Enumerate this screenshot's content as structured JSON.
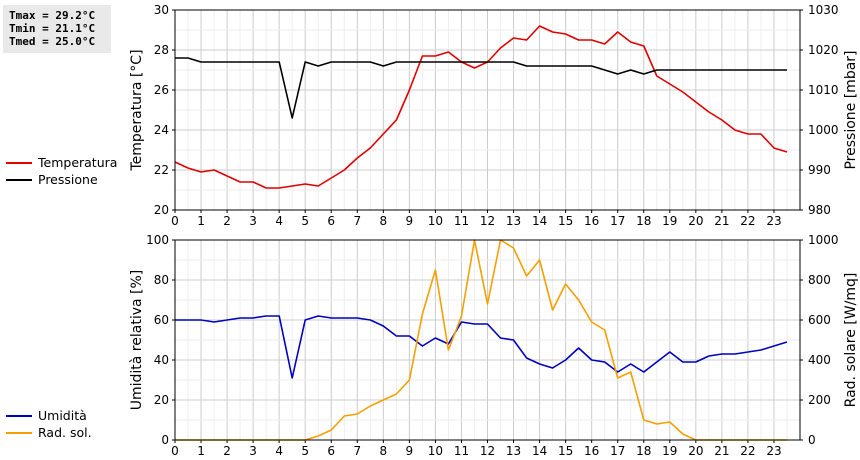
{
  "stats": {
    "tmax": "Tmax = 29.2°C",
    "tmin": "Tmin = 21.1°C",
    "tmed": "Tmed = 25.0°C"
  },
  "legend_top": [
    {
      "label": "Temperatura",
      "color": "#e00000"
    },
    {
      "label": "Pressione",
      "color": "#000000"
    }
  ],
  "legend_bottom": [
    {
      "label": "Umidità",
      "color": "#0000c0"
    },
    {
      "label": "Rad. sol.",
      "color": "#f5a000"
    }
  ],
  "chart_data": [
    {
      "type": "line",
      "x_ticks": [
        "0",
        "1",
        "2",
        "3",
        "4",
        "5",
        "6",
        "7",
        "8",
        "9",
        "10",
        "11",
        "12",
        "13",
        "14",
        "15",
        "16",
        "17",
        "18",
        "19",
        "20",
        "21",
        "22",
        "23"
      ],
      "xlim": [
        0,
        24
      ],
      "ylabel": "Temperatura [°C]",
      "ylim": [
        20,
        30
      ],
      "y_ticks": [
        "20",
        "22",
        "24",
        "26",
        "28",
        "30"
      ],
      "y2label": "Pressione [mbar]",
      "y2lim": [
        980,
        1030
      ],
      "y2_ticks": [
        "980",
        "990",
        "1000",
        "1010",
        "1020",
        "1030"
      ],
      "grid": true,
      "series": [
        {
          "name": "Temperatura",
          "axis": "left",
          "color": "#e00000",
          "x": [
            0,
            0.5,
            1,
            1.5,
            2,
            2.5,
            3,
            3.5,
            4,
            4.5,
            5,
            5.5,
            6,
            6.5,
            7,
            7.5,
            8,
            8.5,
            9,
            9.5,
            10,
            10.5,
            11,
            11.5,
            12,
            12.5,
            13,
            13.5,
            14,
            14.5,
            15,
            15.5,
            16,
            16.5,
            17,
            17.5,
            18,
            18.5,
            19,
            19.5,
            20,
            20.5,
            21,
            21.5,
            22,
            22.5,
            23,
            23.5
          ],
          "y": [
            22.4,
            22.1,
            21.9,
            22.0,
            21.7,
            21.4,
            21.4,
            21.1,
            21.1,
            21.2,
            21.3,
            21.2,
            21.6,
            22.0,
            22.6,
            23.1,
            23.8,
            24.5,
            26.0,
            27.7,
            27.7,
            27.9,
            27.4,
            27.1,
            27.4,
            28.1,
            28.6,
            28.5,
            29.2,
            28.9,
            28.8,
            28.5,
            28.5,
            28.3,
            28.9,
            28.4,
            28.2,
            26.7,
            26.3,
            25.9,
            25.4,
            24.9,
            24.5,
            24.0,
            23.8,
            23.8,
            23.1,
            22.9
          ]
        },
        {
          "name": "Pressione",
          "axis": "right",
          "color": "#000000",
          "x": [
            0,
            0.5,
            1,
            1.5,
            2,
            2.5,
            3,
            3.5,
            4,
            4.5,
            5,
            5.5,
            6,
            6.5,
            7,
            7.5,
            8,
            8.5,
            9,
            9.5,
            10,
            10.5,
            11,
            11.5,
            12,
            12.5,
            13,
            13.5,
            14,
            14.5,
            15,
            15.5,
            16,
            16.5,
            17,
            17.5,
            18,
            18.5,
            19,
            19.5,
            20,
            20.5,
            21,
            21.5,
            22,
            22.5,
            23,
            23.5
          ],
          "y": [
            1018,
            1018,
            1017,
            1017,
            1017,
            1017,
            1017,
            1017,
            1017,
            1003,
            1017,
            1016,
            1017,
            1017,
            1017,
            1017,
            1016,
            1017,
            1017,
            1017,
            1017,
            1017,
            1017,
            1017,
            1017,
            1017,
            1017,
            1016,
            1016,
            1016,
            1016,
            1016,
            1016,
            1015,
            1014,
            1015,
            1014,
            1015,
            1015,
            1015,
            1015,
            1015,
            1015,
            1015,
            1015,
            1015,
            1015,
            1015
          ]
        }
      ]
    },
    {
      "type": "line",
      "x_ticks": [
        "0",
        "1",
        "2",
        "3",
        "4",
        "5",
        "6",
        "7",
        "8",
        "9",
        "10",
        "11",
        "12",
        "13",
        "14",
        "15",
        "16",
        "17",
        "18",
        "19",
        "20",
        "21",
        "22",
        "23"
      ],
      "xlim": [
        0,
        24
      ],
      "ylabel": "Umidità relativa [%]",
      "ylim": [
        0,
        100
      ],
      "y_ticks": [
        "0",
        "20",
        "40",
        "60",
        "80",
        "100"
      ],
      "y2label": "Rad. solare [W/mq]",
      "y2lim": [
        0,
        1000
      ],
      "y2_ticks": [
        "0",
        "200",
        "400",
        "600",
        "800",
        "1000"
      ],
      "grid": true,
      "series": [
        {
          "name": "Umidità",
          "axis": "left",
          "color": "#0000c0",
          "x": [
            0,
            0.5,
            1,
            1.5,
            2,
            2.5,
            3,
            3.5,
            4,
            4.5,
            5,
            5.5,
            6,
            6.5,
            7,
            7.5,
            8,
            8.5,
            9,
            9.5,
            10,
            10.5,
            11,
            11.5,
            12,
            12.5,
            13,
            13.5,
            14,
            14.5,
            15,
            15.5,
            16,
            16.5,
            17,
            17.5,
            18,
            18.5,
            19,
            19.5,
            20,
            20.5,
            21,
            21.5,
            22,
            22.5,
            23,
            23.5
          ],
          "y": [
            60,
            60,
            60,
            59,
            60,
            61,
            61,
            62,
            62,
            31,
            60,
            62,
            61,
            61,
            61,
            60,
            57,
            52,
            52,
            47,
            51,
            48,
            59,
            58,
            58,
            51,
            50,
            41,
            38,
            36,
            40,
            46,
            40,
            39,
            34,
            38,
            34,
            39,
            44,
            39,
            39,
            42,
            43,
            43,
            44,
            45,
            47,
            49
          ]
        },
        {
          "name": "Rad. sol.",
          "axis": "right",
          "color": "#f5a000",
          "x": [
            0,
            0.5,
            1,
            1.5,
            2,
            2.5,
            3,
            3.5,
            4,
            4.5,
            5,
            5.5,
            6,
            6.5,
            7,
            7.5,
            8,
            8.5,
            9,
            9.5,
            10,
            10.5,
            11,
            11.5,
            12,
            12.5,
            13,
            13.5,
            14,
            14.5,
            15,
            15.5,
            16,
            16.5,
            17,
            17.5,
            18,
            18.5,
            19,
            19.5,
            20,
            20.5,
            21,
            21.5,
            22,
            22.5,
            23,
            23.5
          ],
          "y": [
            0,
            0,
            0,
            0,
            0,
            0,
            0,
            0,
            0,
            0,
            0,
            20,
            50,
            120,
            130,
            170,
            200,
            230,
            300,
            630,
            850,
            450,
            620,
            1000,
            680,
            1000,
            960,
            820,
            900,
            650,
            780,
            700,
            590,
            550,
            310,
            340,
            100,
            80,
            90,
            30,
            0,
            0,
            0,
            0,
            0,
            0,
            0,
            0
          ]
        }
      ]
    }
  ]
}
